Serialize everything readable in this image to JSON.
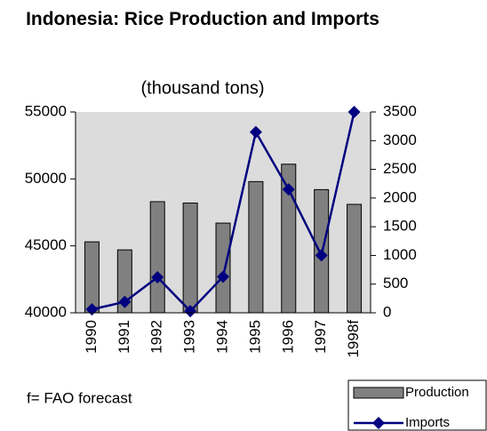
{
  "chart_data": {
    "type": "combo",
    "title": "Indonesia: Rice Production and Imports",
    "subtitle": "(thousand tons)",
    "annotation": "f= FAO forecast",
    "categories": [
      "1990",
      "1991",
      "1992",
      "1993",
      "1994",
      "1995",
      "1996",
      "1997",
      "1998f"
    ],
    "series": [
      {
        "name": "Production",
        "type": "bar",
        "color": "#808080",
        "axis": "y",
        "values": [
          45300,
          44700,
          48300,
          48200,
          46700,
          49800,
          51100,
          49200,
          48100
        ]
      },
      {
        "name": "Imports",
        "type": "line",
        "color": "#000080",
        "axis": "y2",
        "values": [
          60,
          190,
          620,
          30,
          630,
          3150,
          2150,
          1000,
          3500
        ]
      }
    ],
    "ylim": [
      40000,
      55000
    ],
    "yticks": [
      40000,
      45000,
      50000,
      55000
    ],
    "y2lim": [
      0,
      3500
    ],
    "y2ticks": [
      0,
      500,
      1000,
      1500,
      2000,
      2500,
      3000,
      3500
    ],
    "plot_background": "#dcdcdc",
    "legend": "bottom-right"
  }
}
